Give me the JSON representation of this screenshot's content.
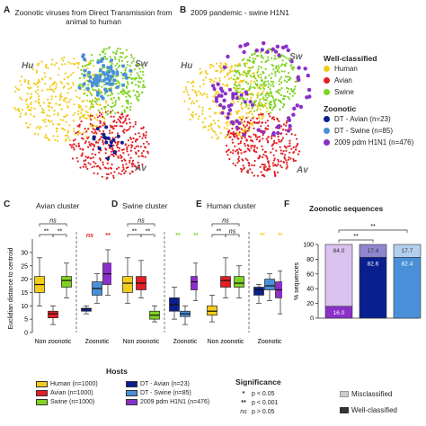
{
  "panels": {
    "A": {
      "letter": "A",
      "title": "Zoonotic viruses from Direct Transmission from animal to human",
      "labels": {
        "hu": "Hu",
        "sw": "Sw",
        "av": "Av"
      }
    },
    "B": {
      "letter": "B",
      "title": "2009 pandemic - swine H1N1",
      "labels": {
        "hu": "Hu",
        "sw": "Sw",
        "av": "Av"
      }
    },
    "C": {
      "letter": "C",
      "title": "Avian cluster"
    },
    "D": {
      "letter": "D",
      "title": "Swine cluster"
    },
    "E": {
      "letter": "E",
      "title": "Human cluster"
    },
    "F": {
      "letter": "F",
      "title": "Zoonotic sequences"
    }
  },
  "legend": {
    "well_title": "Well-classified",
    "well_items": [
      {
        "label": "Human",
        "color": "#f2cc1a"
      },
      {
        "label": "Avian",
        "color": "#e31e24"
      },
      {
        "label": "Swine",
        "color": "#7ed321"
      }
    ],
    "zoo_title": "Zoonotic",
    "zoo_items": [
      {
        "label": "DT - Avian (n=23)",
        "color": "#0a1f8f"
      },
      {
        "label": "DT - Swine (n=85)",
        "color": "#4a90d9"
      },
      {
        "label": "2009 pdm H1N1 (n=476)",
        "color": "#8b2fc9"
      }
    ]
  },
  "colors": {
    "human": "#f2cc1a",
    "avian": "#e31e24",
    "swine": "#7ed321",
    "dt_avian": "#0a1f8f",
    "dt_swine": "#4a90d9",
    "pdm": "#8b2fc9",
    "pdm_light": "#d9c2ee",
    "dt_avian_light": "#8f86cf",
    "dt_swine_light": "#b3cfee"
  },
  "box_axis": {
    "ylabel": "Euclidian distance to centroid",
    "ticks": [
      "0",
      "5",
      "10",
      "15",
      "20",
      "25",
      "30"
    ],
    "xlabels": [
      "Non zoonotic",
      "Zoonotic"
    ]
  },
  "chart_data": [
    {
      "type": "box",
      "panel": "C",
      "title": "Avian cluster",
      "ylabel": "Euclidian distance to centroid",
      "ylim": [
        0,
        33
      ],
      "groups": [
        "Human",
        "Avian",
        "Swine",
        "DT - Avian",
        "DT - Swine",
        "2009 pdm H1N1"
      ],
      "stats": [
        [
          10,
          15,
          18,
          21,
          28
        ],
        [
          3,
          5.5,
          7,
          8,
          10
        ],
        [
          13,
          17,
          19.5,
          21,
          26
        ],
        [
          7,
          8,
          9,
          9,
          10
        ],
        [
          11,
          14,
          16.5,
          19,
          22
        ],
        [
          14,
          18,
          22,
          26,
          31
        ]
      ],
      "significance": {
        "pair_labels": [
          "**",
          "ns",
          "**"
        ],
        "zoo_labels": [
          "ns",
          "**"
        ],
        "zoo_label_colors": [
          "#e31e24",
          "#e31e24"
        ]
      }
    },
    {
      "type": "box",
      "panel": "D",
      "title": "Swine cluster",
      "ylabel": "",
      "ylim": [
        0,
        33
      ],
      "groups": [
        "Human",
        "Avian",
        "Swine",
        "DT - Avian",
        "DT - Swine",
        "2009 pdm H1N1"
      ],
      "stats": [
        [
          11,
          15,
          18.5,
          21,
          28
        ],
        [
          13,
          16,
          18.5,
          21,
          27
        ],
        [
          4,
          5,
          6.5,
          8,
          10
        ],
        [
          5,
          8,
          10.5,
          13,
          17
        ],
        [
          3,
          6,
          7,
          8,
          10
        ],
        [
          12,
          16,
          19,
          21,
          26
        ]
      ],
      "significance": {
        "pair_labels": [
          "**",
          "ns",
          "**"
        ],
        "zoo_labels": [
          "**",
          "**"
        ],
        "zoo_label_colors": [
          "#7ed321",
          "#7ed321"
        ]
      }
    },
    {
      "type": "box",
      "panel": "E",
      "title": "Human cluster",
      "ylabel": "",
      "ylim": [
        0,
        33
      ],
      "groups": [
        "Human",
        "Avian",
        "Swine",
        "DT - Avian",
        "DT - Swine",
        "2009 pdm H1N1"
      ],
      "stats": [
        [
          4,
          6.5,
          8,
          10,
          14
        ],
        [
          13,
          17,
          19.5,
          21,
          28
        ],
        [
          13,
          17,
          18.5,
          21,
          25
        ],
        [
          11,
          14,
          16,
          17,
          18
        ],
        [
          12,
          16,
          17.5,
          20,
          22
        ],
        [
          7,
          13,
          16,
          19,
          23
        ]
      ],
      "significance": {
        "pair_labels": [
          "**",
          "ns",
          "ns"
        ],
        "zoo_labels": [
          "**",
          "**"
        ],
        "zoo_label_colors": [
          "#f2cc1a",
          "#f2cc1a"
        ]
      }
    },
    {
      "type": "bar",
      "panel": "F",
      "title": "Zoonotic sequences",
      "stacked": true,
      "ylabel": "% sequences",
      "ylim": [
        0,
        100
      ],
      "yticks": [
        "0",
        "20",
        "40",
        "60",
        "80",
        "100"
      ],
      "categories": [
        "2009 pdm H1N1",
        "DT-Avian",
        "DT-Swine"
      ],
      "well_classified": [
        16.0,
        82.6,
        82.4
      ],
      "misclassified": [
        84.0,
        17.4,
        17.7
      ],
      "sig_labels": [
        "**",
        "**"
      ],
      "legend": [
        "Misclassified",
        "Well-classified"
      ]
    }
  ],
  "hosts_legend": {
    "title": "Hosts",
    "items": [
      {
        "label": "Human (n=1000)",
        "color": "#f2cc1a"
      },
      {
        "label": "Avian (n=1000)",
        "color": "#e31e24"
      },
      {
        "label": "Swine (n=1000)",
        "color": "#7ed321"
      },
      {
        "label": "DT - Avian (n=23)",
        "color": "#0a1f8f"
      },
      {
        "label": "DT - Swine (n=85)",
        "color": "#4a90d9"
      },
      {
        "label": "2009 pdm H1N1 (n=476)",
        "color": "#8b2fc9"
      }
    ]
  },
  "significance_legend": {
    "title": "Significance",
    "items": [
      {
        "sym": "*",
        "text": "p < 0.05"
      },
      {
        "sym": "**",
        "text": "p < 0.001"
      },
      {
        "sym": "ns",
        "text": "p > 0.05"
      }
    ]
  }
}
